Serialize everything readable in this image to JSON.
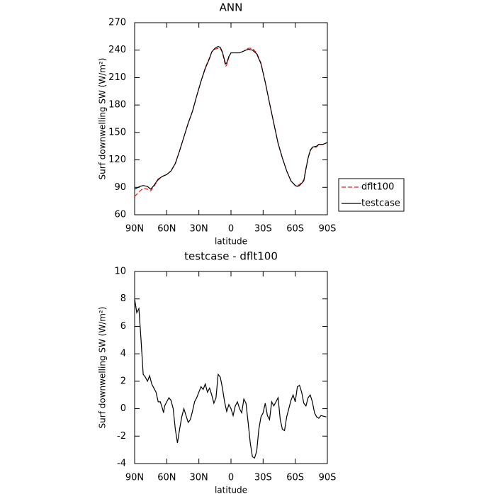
{
  "chart_data": [
    {
      "type": "line",
      "title": "ANN",
      "xlabel": "latitude",
      "ylabel": "Surf downwelling SW  (W/m²)",
      "xlim": [
        90,
        -90
      ],
      "xticks": [
        {
          "value": 90,
          "label": "90N"
        },
        {
          "value": 60,
          "label": "60N"
        },
        {
          "value": 30,
          "label": "30N"
        },
        0,
        {
          "value": -30,
          "label": "30S"
        },
        {
          "value": -60,
          "label": "60S"
        },
        {
          "value": -90,
          "label": "90S"
        }
      ],
      "ylim": [
        60,
        270
      ],
      "yticks": [
        60,
        90,
        120,
        150,
        180,
        210,
        240,
        270
      ],
      "legend": "right",
      "x": [
        90,
        85,
        82,
        78,
        75,
        72,
        68,
        64,
        60,
        56,
        52,
        48,
        44,
        40,
        36,
        32,
        28,
        24,
        20,
        18,
        15,
        12,
        10,
        8,
        6,
        5,
        4,
        2,
        0,
        -4,
        -8,
        -12,
        -16,
        -20,
        -24,
        -28,
        -32,
        -36,
        -40,
        -44,
        -48,
        -52,
        -56,
        -60,
        -62,
        -64,
        -68,
        -70,
        -72,
        -74,
        -76,
        -80,
        -82,
        -86,
        -90
      ],
      "series": [
        {
          "name": "dflt100",
          "color": "#e8231f",
          "dash": true,
          "values": [
            80,
            86,
            89,
            88,
            86,
            91,
            98,
            102,
            104,
            108,
            116,
            130,
            145,
            160,
            173,
            190,
            206,
            221,
            232,
            238,
            241,
            242,
            242,
            237,
            227,
            222,
            224,
            232,
            237,
            237,
            237,
            239,
            242,
            242,
            237,
            226,
            205,
            182,
            160,
            138,
            122,
            108,
            97,
            92,
            92,
            93,
            98,
            111,
            122,
            131,
            133,
            134,
            137,
            137,
            139
          ]
        },
        {
          "name": "testcase",
          "color": "#000000",
          "dash": false,
          "values": [
            88,
            91,
            92,
            91,
            88,
            92,
            99,
            102,
            104,
            108,
            116,
            130,
            145,
            160,
            173,
            190,
            206,
            220,
            231,
            238,
            242,
            244,
            243,
            238,
            229,
            225,
            226,
            233,
            237,
            237,
            237,
            239,
            241,
            240,
            236,
            225,
            205,
            182,
            160,
            138,
            122,
            108,
            97,
            92,
            91,
            92,
            97,
            110,
            122,
            130,
            134,
            135,
            137,
            137,
            139
          ]
        }
      ]
    },
    {
      "type": "line",
      "title": "testcase - dflt100",
      "xlabel": "latitude",
      "ylabel": "Surf downwelling SW  (W/m²)",
      "xlim": [
        90,
        -90
      ],
      "xticks": [
        {
          "value": 90,
          "label": "90N"
        },
        {
          "value": 60,
          "label": "60N"
        },
        {
          "value": 30,
          "label": "30N"
        },
        0,
        {
          "value": -30,
          "label": "30S"
        },
        {
          "value": -60,
          "label": "60S"
        },
        {
          "value": -90,
          "label": "90S"
        }
      ],
      "ylim": [
        -4,
        10
      ],
      "yticks": [
        -4,
        -2,
        0,
        2,
        4,
        6,
        8,
        10
      ],
      "x": [
        90,
        88,
        86,
        84,
        82,
        80,
        78,
        76,
        74,
        72,
        70,
        68,
        66,
        64,
        63,
        62,
        60,
        58,
        56,
        54,
        52,
        50,
        48,
        46,
        44,
        42,
        40,
        38,
        36,
        34,
        32,
        30,
        28,
        26,
        24,
        22,
        20,
        18,
        16,
        14,
        12,
        10,
        8,
        6,
        4,
        2,
        0,
        -2,
        -4,
        -6,
        -8,
        -10,
        -12,
        -14,
        -16,
        -18,
        -20,
        -22,
        -24,
        -26,
        -28,
        -30,
        -32,
        -34,
        -36,
        -38,
        -40,
        -42,
        -44,
        -46,
        -48,
        -50,
        -52,
        -54,
        -56,
        -58,
        -60,
        -62,
        -64,
        -66,
        -68,
        -70,
        -72,
        -74,
        -76,
        -78,
        -80,
        -82,
        -84,
        -89
      ],
      "series": [
        {
          "color": "#000000",
          "dash": false,
          "values": [
            8,
            7,
            7.3,
            5,
            2.5,
            2.3,
            2,
            2.4,
            1.8,
            1.5,
            1.2,
            0.5,
            0.5,
            0,
            -0.3,
            0.2,
            0.5,
            0.8,
            0.6,
            0,
            -1.5,
            -2.5,
            -1.5,
            -0.6,
            0,
            -0.5,
            -1,
            -0.8,
            -0.2,
            0.5,
            0.8,
            1.2,
            1.6,
            1.4,
            1.8,
            1.2,
            1.5,
            1,
            0.4,
            0.8,
            2.5,
            2.3,
            1.5,
            0.5,
            -0.2,
            0.3,
            0,
            -0.5,
            0.2,
            0.5,
            0,
            -0.3,
            0.7,
            0.4,
            -1,
            -2.5,
            -3.5,
            -3.6,
            -3.1,
            -1.5,
            -0.6,
            -0.3,
            0.4,
            -0.5,
            -0.8,
            0.5,
            0.2,
            0.5,
            0.8,
            -0.8,
            -1.5,
            -1.6,
            -0.6,
            0,
            0.6,
            1,
            0.5,
            1.6,
            1.7,
            1.2,
            0.4,
            0.2,
            0.8,
            1,
            0.5,
            -0.3,
            -0.6,
            -0.7,
            -0.5,
            -0.6
          ]
        }
      ]
    }
  ]
}
